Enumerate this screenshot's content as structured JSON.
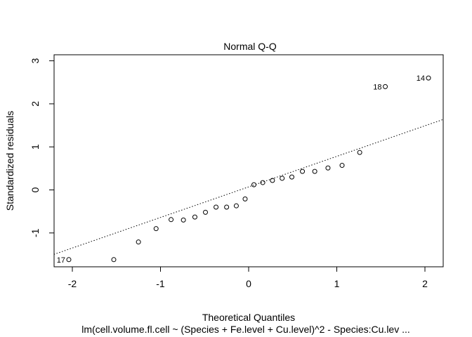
{
  "chart_data": {
    "type": "scatter",
    "title": "Normal Q-Q",
    "xlabel": "Theoretical Quantiles",
    "ylabel": "Standardized residuals",
    "subtitle": "lm(cell.volume.fl.cell ~ (Species + Fe.level + Cu.level)^2 - Species:Cu.lev ...",
    "xlim": [
      -2.2,
      2.2
    ],
    "ylim": [
      -1.8,
      3.05
    ],
    "xticks": [
      -2,
      -1,
      0,
      1,
      2
    ],
    "xtick_labels": [
      "-2",
      "-1",
      "0",
      "1",
      "2"
    ],
    "yticks": [
      -1,
      0,
      1,
      2,
      3
    ],
    "ytick_labels": [
      "-1",
      "0",
      "1",
      "2",
      "3"
    ],
    "grid": false,
    "points": [
      {
        "x": -2.04,
        "y": -1.62,
        "label": "17"
      },
      {
        "x": -1.53,
        "y": -1.62
      },
      {
        "x": -1.25,
        "y": -1.21
      },
      {
        "x": -1.05,
        "y": -0.9
      },
      {
        "x": -0.88,
        "y": -0.69
      },
      {
        "x": -0.74,
        "y": -0.7
      },
      {
        "x": -0.61,
        "y": -0.63
      },
      {
        "x": -0.49,
        "y": -0.52
      },
      {
        "x": -0.37,
        "y": -0.4
      },
      {
        "x": -0.25,
        "y": -0.4
      },
      {
        "x": -0.14,
        "y": -0.37
      },
      {
        "x": -0.04,
        "y": -0.21
      },
      {
        "x": 0.06,
        "y": 0.12
      },
      {
        "x": 0.16,
        "y": 0.17
      },
      {
        "x": 0.27,
        "y": 0.22
      },
      {
        "x": 0.38,
        "y": 0.27
      },
      {
        "x": 0.49,
        "y": 0.3
      },
      {
        "x": 0.61,
        "y": 0.43
      },
      {
        "x": 0.75,
        "y": 0.43
      },
      {
        "x": 0.9,
        "y": 0.51
      },
      {
        "x": 1.06,
        "y": 0.57
      },
      {
        "x": 1.26,
        "y": 0.87
      },
      {
        "x": 1.55,
        "y": 2.4,
        "label": "18"
      },
      {
        "x": 2.04,
        "y": 2.6,
        "label": "14"
      }
    ],
    "reference_line": {
      "style": "dotted",
      "intercept": 0.07,
      "slope": 0.71
    }
  }
}
